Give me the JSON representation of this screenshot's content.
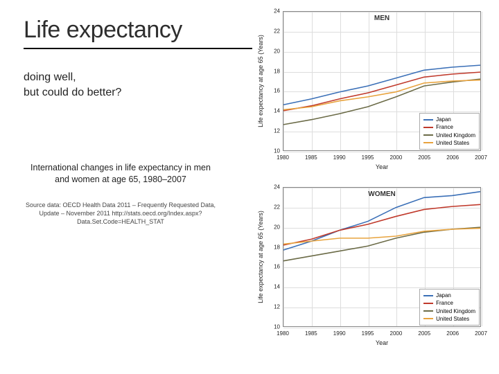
{
  "title": "Life expectancy",
  "subtitle_line1": "doing well,",
  "subtitle_line2": "but could do better?",
  "description": "International changes in life expectancy in men and women at age 65, 1980–2007",
  "source": "Source data: OECD Health Data 2011 – Frequently Requested Data, Update – November 2011 http://stats.oecd.org/Index.aspx?Data.Set.Code=HEALTH_STAT",
  "axis_y_label": "Life expectancy at age 65 (Years)",
  "axis_x_label": "Year",
  "series_meta": [
    {
      "name": "Japan",
      "color": "#3a6fb7"
    },
    {
      "name": "France",
      "color": "#c0392b"
    },
    {
      "name": "United Kingdom",
      "color": "#6b6b47"
    },
    {
      "name": "United States",
      "color": "#e8a33d"
    }
  ],
  "charts": [
    {
      "title": "MEN",
      "ylim": [
        10,
        24
      ],
      "ytick_step": 2,
      "x_categories": [
        "1980",
        "1985",
        "1990",
        "1995",
        "2000",
        "2005",
        "2006",
        "2007"
      ],
      "series": [
        {
          "name": "Japan",
          "values": [
            14.6,
            15.2,
            15.9,
            16.5,
            17.3,
            18.1,
            18.4,
            18.6
          ]
        },
        {
          "name": "France",
          "values": [
            14.0,
            14.5,
            15.2,
            15.8,
            16.6,
            17.4,
            17.7,
            17.9
          ]
        },
        {
          "name": "United Kingdom",
          "values": [
            12.6,
            13.1,
            13.7,
            14.4,
            15.4,
            16.5,
            16.9,
            17.2
          ]
        },
        {
          "name": "United States",
          "values": [
            14.1,
            14.4,
            15.0,
            15.4,
            15.9,
            16.8,
            17.0,
            17.1
          ]
        }
      ]
    },
    {
      "title": "WOMEN",
      "ylim": [
        10,
        24
      ],
      "ytick_step": 2,
      "x_categories": [
        "1980",
        "1985",
        "1990",
        "1995",
        "2000",
        "2005",
        "2006",
        "2007"
      ],
      "series": [
        {
          "name": "Japan",
          "values": [
            17.7,
            18.6,
            19.7,
            20.6,
            22.0,
            23.0,
            23.2,
            23.6
          ]
        },
        {
          "name": "France",
          "values": [
            18.2,
            18.8,
            19.7,
            20.3,
            21.1,
            21.8,
            22.1,
            22.3
          ]
        },
        {
          "name": "United Kingdom",
          "values": [
            16.6,
            17.1,
            17.6,
            18.1,
            18.9,
            19.5,
            19.8,
            20.0
          ]
        },
        {
          "name": "United States",
          "values": [
            18.3,
            18.6,
            18.9,
            18.9,
            19.1,
            19.6,
            19.8,
            19.9
          ]
        }
      ]
    }
  ],
  "style": {
    "background": "#ffffff",
    "grid_color": "#dddddd",
    "axis_color": "#888888",
    "title_fontsize": 34,
    "subtitle_fontsize": 16,
    "desc_fontsize": 12.5,
    "source_fontsize": 9,
    "tick_fontsize": 8,
    "line_width": 1.6,
    "accent_color": "#27496d"
  }
}
